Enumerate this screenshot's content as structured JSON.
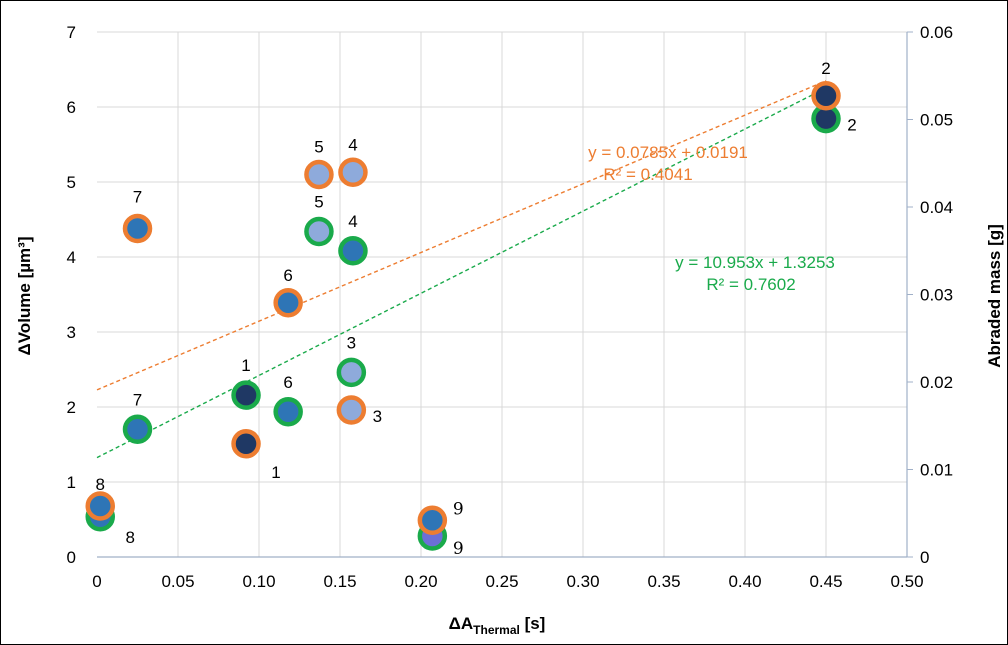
{
  "chart_data": {
    "type": "scatter",
    "xlabel_main": "ΔA",
    "xlabel_sub": "Thermal",
    "xlabel_unit": " [s]",
    "ylabel": "ΔVolume [µm³]",
    "y2label": "Abraded mass [g]",
    "xlim": [
      0,
      0.5
    ],
    "ylim": [
      0,
      7
    ],
    "y2lim": [
      0,
      0.06
    ],
    "x_ticks": [
      "0",
      "0.05",
      "0.10",
      "0.15",
      "0.20",
      "0.25",
      "0.30",
      "0.35",
      "0.40",
      "0.45",
      "0.50"
    ],
    "y_ticks": [
      "0",
      "1",
      "2",
      "3",
      "4",
      "5",
      "6",
      "7"
    ],
    "y2_ticks": [
      "0",
      "0.01",
      "0.02",
      "0.03",
      "0.04",
      "0.05",
      "0.06"
    ],
    "grid": true,
    "colors": {
      "volume_ring": "#ed7d31",
      "mass_ring": "#1aaa4b",
      "fill_dark": "#1f3864",
      "fill_mid": "#2e75b6",
      "fill_light": "#8eaadb",
      "fill_violet": "#6c6fd6",
      "axis": "#a0b0c8",
      "grid": "#d9d9d9"
    },
    "series": [
      {
        "axis": "left",
        "ring": "volume_ring",
        "points": [
          {
            "x": 0.092,
            "y": 1.51,
            "label": "1",
            "fill": "fill_dark"
          },
          {
            "x": 0.45,
            "y": 6.15,
            "label": "2",
            "fill": "fill_dark"
          },
          {
            "x": 0.157,
            "y": 1.96,
            "label": "3",
            "fill": "fill_light"
          },
          {
            "x": 0.158,
            "y": 5.13,
            "label": "4",
            "fill": "fill_light"
          },
          {
            "x": 0.137,
            "y": 5.1,
            "label": "5",
            "fill": "fill_light"
          },
          {
            "x": 0.118,
            "y": 3.39,
            "label": "6",
            "fill": "fill_mid"
          },
          {
            "x": 0.025,
            "y": 4.38,
            "label": "7",
            "fill": "fill_mid"
          },
          {
            "x": 0.002,
            "y": 0.68,
            "label": "8",
            "fill": "fill_mid"
          },
          {
            "x": 0.207,
            "y": 0.49,
            "label": "9",
            "fill": "fill_mid"
          }
        ],
        "trend": {
          "slope": 0.0785,
          "intercept": 0.0191,
          "equation": "y = 0.0785x + 0.0191",
          "r2": "R² = 0.4041"
        }
      },
      {
        "axis": "right",
        "ring": "mass_ring",
        "points": [
          {
            "x": 0.092,
            "y": 0.0185,
            "label": "1",
            "fill": "fill_dark"
          },
          {
            "x": 0.45,
            "y": 0.0501,
            "label": "2",
            "fill": "fill_dark"
          },
          {
            "x": 0.157,
            "y": 0.0211,
            "label": "3",
            "fill": "fill_light"
          },
          {
            "x": 0.158,
            "y": 0.035,
            "label": "4",
            "fill": "fill_mid"
          },
          {
            "x": 0.137,
            "y": 0.0372,
            "label": "5",
            "fill": "fill_light"
          },
          {
            "x": 0.118,
            "y": 0.0166,
            "label": "6",
            "fill": "fill_mid"
          },
          {
            "x": 0.025,
            "y": 0.0146,
            "label": "7",
            "fill": "fill_mid"
          },
          {
            "x": 0.002,
            "y": 0.0046,
            "label": "8",
            "fill": "fill_mid"
          },
          {
            "x": 0.207,
            "y": 0.0024,
            "label": "9",
            "fill": "fill_violet"
          }
        ],
        "trend": {
          "slope": 10.953,
          "intercept": 1.3253,
          "equation": "y = 10.953x + 1.3253",
          "r2": "R² = 0.7602"
        }
      }
    ]
  }
}
